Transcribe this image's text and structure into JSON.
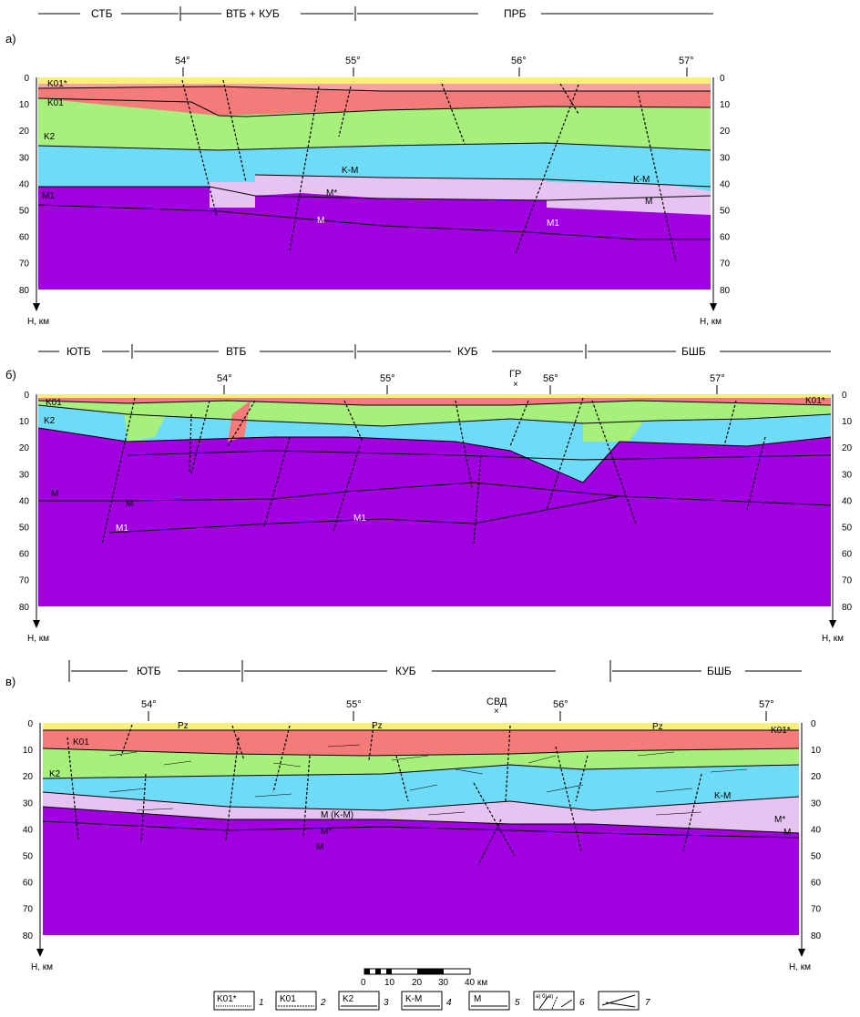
{
  "colors": {
    "yellow": "#f7f07a",
    "k01star": "#f6a3a3",
    "k01": "#f57a7a",
    "k2": "#a8f07c",
    "km": "#6fdcf7",
    "mstar": "#e6c4f2",
    "m": "#a000e0",
    "line": "#000000"
  },
  "panel_a": {
    "label": "а)",
    "zones": [
      "СТБ",
      "ВТБ + КУБ",
      "ПРБ"
    ],
    "longitudes": [
      "54°",
      "55°",
      "56°",
      "57°"
    ],
    "depths": [
      "0",
      "10",
      "20",
      "30",
      "40",
      "50",
      "60",
      "70",
      "80"
    ],
    "depth_axis": "H, км",
    "layers": {
      "k01star": "K01*",
      "k01": "K01",
      "k2": "K2",
      "m1": "M1",
      "km1": "K-M",
      "mstar": "M*",
      "m_a": "M",
      "km2": "K-M",
      "m_b": "M",
      "m1b": "M1"
    }
  },
  "panel_b": {
    "label": "б)",
    "zones": [
      "ЮТБ",
      "ВТБ",
      "КУБ",
      "БШБ"
    ],
    "longitudes": [
      "54°",
      "55°",
      "56°",
      "57°"
    ],
    "well": "ГР",
    "depths": [
      "0",
      "10",
      "20",
      "30",
      "40",
      "50",
      "60",
      "70",
      "80"
    ],
    "depth_axis": "H, км",
    "layers": {
      "k01": "K01",
      "k2": "K2",
      "m_left": "M",
      "m_mid": "M",
      "m1a": "M1",
      "m1b": "M1",
      "k01star": "K01*"
    }
  },
  "panel_c": {
    "label": "в)",
    "zones": [
      "ЮТБ",
      "КУБ",
      "БШБ"
    ],
    "longitudes": [
      "54°",
      "55°",
      "56°",
      "57°"
    ],
    "well": "СВД",
    "depths": [
      "0",
      "10",
      "20",
      "30",
      "40",
      "50",
      "60",
      "70",
      "80"
    ],
    "depth_axis": "H, км",
    "layers": {
      "pz1": "Pz",
      "pz2": "Pz",
      "pz3": "Pz",
      "k01": "K01",
      "k2": "K2",
      "mkm": "M (K-M)",
      "mstar": "M*",
      "m": "M",
      "km": "K-M",
      "mstar2": "M*",
      "m2": "M",
      "k01star": "K01*"
    }
  },
  "scale": {
    "ticks": [
      "0",
      "10",
      "20",
      "30",
      "40 км"
    ]
  },
  "legend": [
    {
      "sym": "K01*",
      "num": "1"
    },
    {
      "sym": "K01",
      "num": "2"
    },
    {
      "sym": "K2",
      "num": "3"
    },
    {
      "sym": "K-M",
      "num": "4"
    },
    {
      "sym": "M",
      "num": "5"
    },
    {
      "sym": "a) б) в)",
      "num": "6"
    },
    {
      "sym": "",
      "num": "7"
    }
  ]
}
